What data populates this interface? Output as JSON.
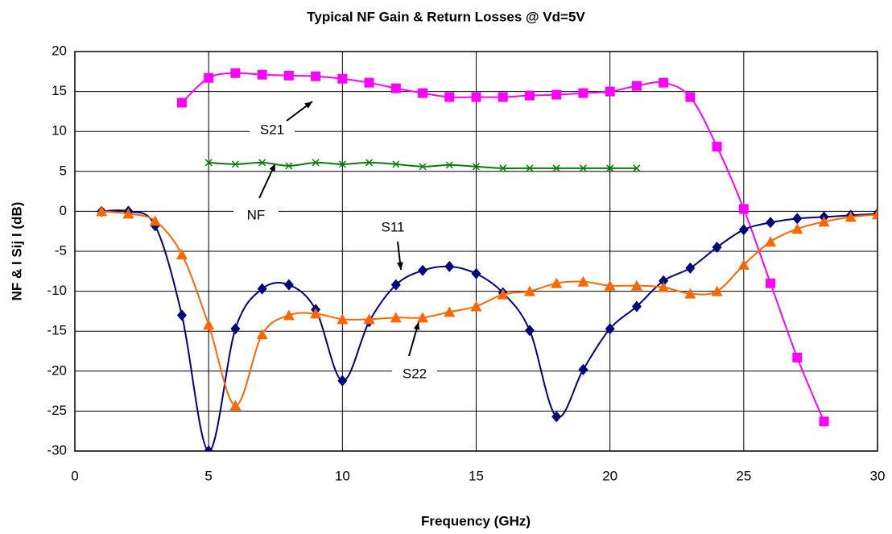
{
  "chart_data": {
    "type": "line",
    "title": "Typical NF Gain & Return Losses @ Vd=5V",
    "x_label": "Frequency (GHz)",
    "y_label": "NF & I Sij I (dB)",
    "xlim": [
      0,
      30
    ],
    "xticks": [
      0,
      5,
      10,
      15,
      20,
      25,
      30
    ],
    "ylim": [
      -30,
      20
    ],
    "yticks": [
      -30,
      -25,
      -20,
      -15,
      -10,
      -5,
      0,
      5,
      10,
      15,
      20
    ],
    "grid": true,
    "series": [
      {
        "name": "S21",
        "color": "#ff00ff",
        "marker": "square",
        "x": [
          4,
          5,
          6,
          7,
          8,
          9,
          10,
          11,
          12,
          13,
          14,
          15,
          16,
          17,
          18,
          19,
          20,
          21,
          22,
          23,
          24,
          25,
          26,
          27,
          28
        ],
        "values": [
          13.6,
          16.7,
          17.3,
          17.1,
          17.0,
          16.9,
          16.6,
          16.1,
          15.4,
          14.8,
          14.3,
          14.3,
          14.3,
          14.5,
          14.6,
          14.8,
          15.0,
          15.7,
          16.1,
          14.3,
          8.1,
          0.3,
          -9.0,
          -18.3,
          -26.3
        ]
      },
      {
        "name": "NF",
        "color": "#008000",
        "marker": "x",
        "x": [
          5,
          6,
          7,
          8,
          9,
          10,
          11,
          12,
          13,
          14,
          15,
          16,
          17,
          18,
          19,
          20,
          21
        ],
        "values": [
          6.1,
          5.9,
          6.1,
          5.7,
          6.1,
          5.9,
          6.1,
          5.9,
          5.6,
          5.8,
          5.6,
          5.4,
          5.4,
          5.4,
          5.4,
          5.4,
          5.4
        ]
      },
      {
        "name": "S11",
        "color": "#000080",
        "marker": "diamond",
        "x": [
          1,
          2,
          3,
          4,
          5,
          6,
          7,
          8,
          9,
          10,
          11,
          12,
          13,
          14,
          15,
          16,
          17,
          18,
          19,
          20,
          21,
          22,
          23,
          24,
          25,
          26,
          27,
          28,
          29,
          30
        ],
        "values": [
          0,
          0,
          -1.8,
          -13,
          -30,
          -14.7,
          -9.7,
          -9.2,
          -12.3,
          -21.2,
          -13.8,
          -9.2,
          -7.4,
          -6.9,
          -7.8,
          -10.2,
          -14.9,
          -25.7,
          -19.8,
          -14.7,
          -11.9,
          -8.7,
          -7.1,
          -4.5,
          -2.3,
          -1.4,
          -0.9,
          -0.7,
          -0.5,
          -0.3
        ]
      },
      {
        "name": "S22",
        "color": "#ff6600",
        "marker": "triangle",
        "x": [
          1,
          2,
          3,
          4,
          5,
          6,
          7,
          8,
          9,
          10,
          11,
          12,
          13,
          14,
          15,
          16,
          17,
          18,
          19,
          20,
          21,
          22,
          23,
          24,
          25,
          26,
          27,
          28,
          29,
          30
        ],
        "values": [
          0,
          -0.3,
          -1.2,
          -5.4,
          -14.2,
          -24.3,
          -15.4,
          -13,
          -12.8,
          -13.5,
          -13.5,
          -13.3,
          -13.3,
          -12.6,
          -11.9,
          -10.4,
          -10,
          -9,
          -8.8,
          -9.3,
          -9.3,
          -9.5,
          -10.3,
          -10,
          -6.7,
          -3.8,
          -2.2,
          -1.3,
          -0.7,
          -0.4
        ]
      }
    ]
  }
}
